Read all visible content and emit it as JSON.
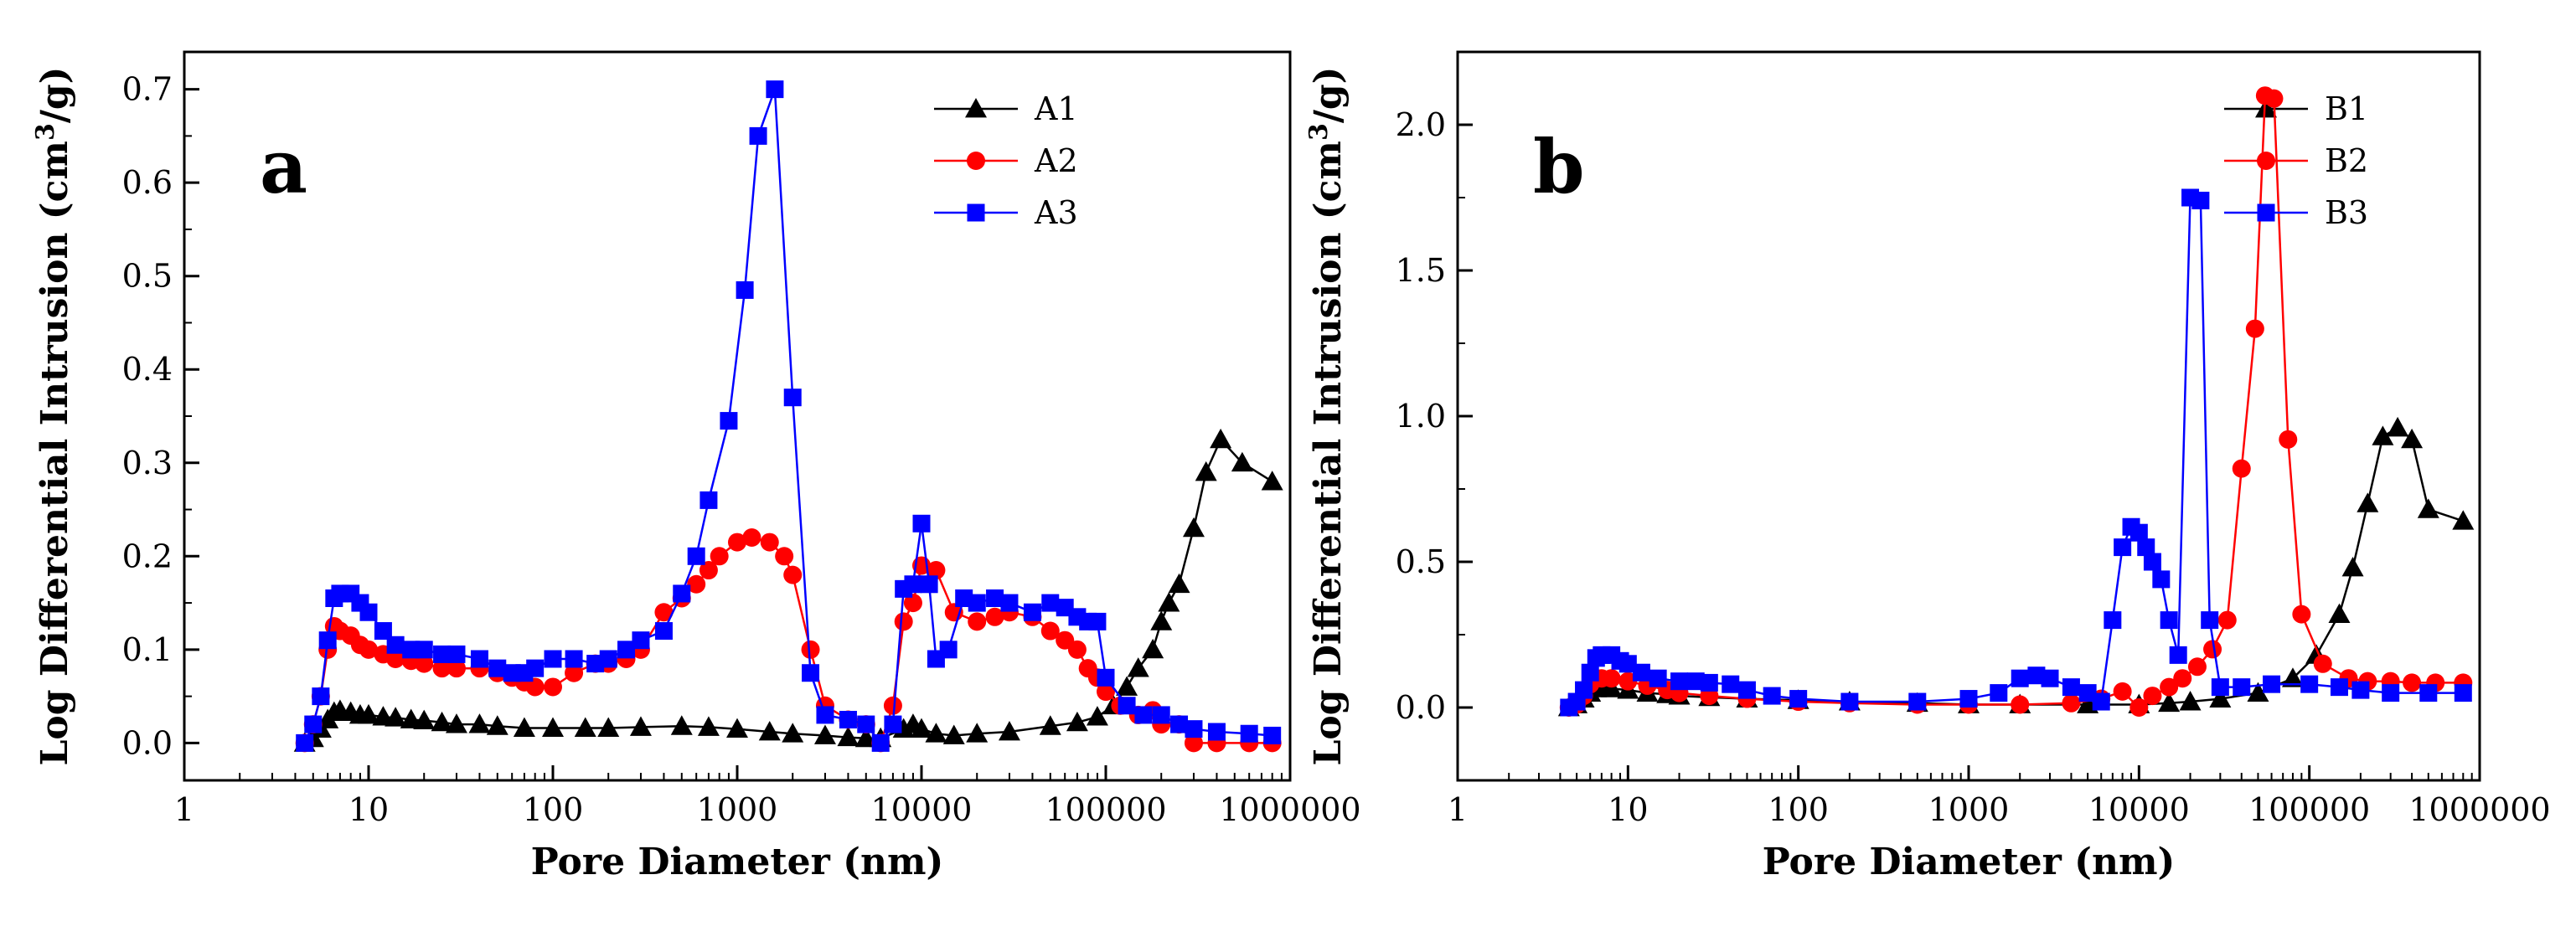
{
  "chart_data": [
    {
      "type": "line",
      "panel_label": "a",
      "xscale": "log",
      "xlim": [
        1,
        1000000
      ],
      "ylim": [
        -0.04,
        0.74
      ],
      "xticks": [
        1,
        10,
        100,
        1000,
        10000,
        100000,
        1000000
      ],
      "xtick_labels": [
        "1",
        "10",
        "100",
        "1000",
        "10000",
        "100000",
        "1000000"
      ],
      "yticks": [
        0.0,
        0.1,
        0.2,
        0.3,
        0.4,
        0.5,
        0.6,
        0.7
      ],
      "ytick_labels": [
        "0.0",
        "0.1",
        "0.2",
        "0.3",
        "0.4",
        "0.5",
        "0.6",
        "0.7"
      ],
      "xlabel": "Pore Diameter (nm)",
      "ylabel": "Log Differential Intrusion (cm",
      "ylabel_sup": "3",
      "ylabel_tail": "/g)",
      "legend_position": "top-right",
      "series": [
        {
          "name": "A1",
          "color": "#000000",
          "marker": "triangle",
          "x": [
            4.5,
            5,
            5.5,
            6,
            6.5,
            7,
            8,
            9,
            10,
            12,
            14,
            17,
            20,
            25,
            30,
            40,
            50,
            70,
            100,
            150,
            200,
            300,
            500,
            700,
            1000,
            1500,
            2000,
            3000,
            4000,
            5000,
            6000,
            8000,
            9000,
            10000,
            12000,
            15000,
            20000,
            30000,
            50000,
            70000,
            90000,
            110000,
            130000,
            150000,
            180000,
            200000,
            220000,
            250000,
            300000,
            350000,
            420000,
            550000,
            800000
          ],
          "y": [
            0.0,
            0.005,
            0.015,
            0.025,
            0.033,
            0.035,
            0.033,
            0.03,
            0.03,
            0.028,
            0.027,
            0.025,
            0.024,
            0.022,
            0.02,
            0.02,
            0.018,
            0.016,
            0.016,
            0.016,
            0.016,
            0.017,
            0.018,
            0.017,
            0.015,
            0.012,
            0.01,
            0.008,
            0.006,
            0.005,
            0.005,
            0.015,
            0.02,
            0.015,
            0.01,
            0.008,
            0.01,
            0.012,
            0.018,
            0.022,
            0.028,
            0.04,
            0.06,
            0.08,
            0.1,
            0.13,
            0.15,
            0.17,
            0.23,
            0.29,
            0.325,
            0.3,
            0.28
          ]
        },
        {
          "name": "A2",
          "color": "#ff0000",
          "marker": "circle",
          "x": [
            4.5,
            5,
            5.5,
            6,
            6.5,
            7,
            8,
            9,
            10,
            12,
            14,
            17,
            20,
            25,
            30,
            40,
            50,
            60,
            70,
            80,
            100,
            130,
            170,
            200,
            250,
            300,
            400,
            500,
            600,
            700,
            800,
            1000,
            1200,
            1500,
            1800,
            2000,
            2500,
            3000,
            4000,
            5000,
            6000,
            7000,
            8000,
            9000,
            10000,
            12000,
            15000,
            20000,
            25000,
            30000,
            40000,
            50000,
            60000,
            70000,
            80000,
            90000,
            100000,
            120000,
            150000,
            180000,
            200000,
            250000,
            300000,
            400000,
            600000,
            800000
          ],
          "y": [
            0.0,
            0.02,
            0.05,
            0.1,
            0.125,
            0.12,
            0.115,
            0.105,
            0.1,
            0.095,
            0.09,
            0.088,
            0.085,
            0.08,
            0.08,
            0.08,
            0.075,
            0.07,
            0.065,
            0.06,
            0.06,
            0.075,
            0.085,
            0.085,
            0.09,
            0.1,
            0.14,
            0.155,
            0.17,
            0.185,
            0.2,
            0.215,
            0.22,
            0.215,
            0.2,
            0.18,
            0.1,
            0.04,
            0.025,
            0.02,
            0.0,
            0.04,
            0.13,
            0.15,
            0.19,
            0.185,
            0.14,
            0.13,
            0.135,
            0.14,
            0.135,
            0.12,
            0.11,
            0.1,
            0.08,
            0.07,
            0.055,
            0.04,
            0.03,
            0.035,
            0.02,
            0.02,
            0.0,
            0.0,
            0.0,
            0.0
          ]
        },
        {
          "name": "A3",
          "color": "#0000ff",
          "marker": "square",
          "x": [
            4.5,
            5,
            5.5,
            6,
            6.5,
            7,
            8,
            9,
            10,
            12,
            14,
            17,
            20,
            25,
            30,
            40,
            50,
            60,
            70,
            80,
            100,
            130,
            170,
            200,
            250,
            300,
            400,
            500,
            600,
            700,
            900,
            1100,
            1300,
            1600,
            2000,
            2500,
            3000,
            4000,
            5000,
            6000,
            7000,
            8000,
            9000,
            10000,
            11000,
            12000,
            14000,
            17000,
            20000,
            25000,
            30000,
            40000,
            50000,
            60000,
            70000,
            80000,
            90000,
            100000,
            130000,
            160000,
            200000,
            250000,
            300000,
            400000,
            600000,
            800000
          ],
          "y": [
            0.0,
            0.02,
            0.05,
            0.11,
            0.155,
            0.16,
            0.16,
            0.15,
            0.14,
            0.12,
            0.105,
            0.1,
            0.1,
            0.095,
            0.095,
            0.09,
            0.08,
            0.075,
            0.075,
            0.08,
            0.09,
            0.09,
            0.085,
            0.09,
            0.1,
            0.11,
            0.12,
            0.16,
            0.2,
            0.26,
            0.345,
            0.485,
            0.65,
            0.7,
            0.37,
            0.075,
            0.03,
            0.025,
            0.02,
            0.0,
            0.02,
            0.165,
            0.17,
            0.235,
            0.17,
            0.09,
            0.1,
            0.155,
            0.15,
            0.155,
            0.15,
            0.14,
            0.15,
            0.145,
            0.135,
            0.13,
            0.13,
            0.07,
            0.04,
            0.03,
            0.03,
            0.02,
            0.015,
            0.012,
            0.01,
            0.008
          ]
        }
      ]
    },
    {
      "type": "line",
      "panel_label": "b",
      "xscale": "log",
      "xlim": [
        1,
        1000000
      ],
      "ylim": [
        -0.25,
        2.25
      ],
      "xticks": [
        1,
        10,
        100,
        1000,
        10000,
        100000,
        1000000
      ],
      "xtick_labels": [
        "1",
        "10",
        "100",
        "1000",
        "10000",
        "100000",
        "1000000"
      ],
      "yticks": [
        0.0,
        0.5,
        1.0,
        1.5,
        2.0
      ],
      "ytick_labels": [
        "0.0",
        "0.5",
        "1.0",
        "1.5",
        "2.0"
      ],
      "xlabel": "Pore Diameter (nm)",
      "ylabel": "Log Differential Intrusion (cm",
      "ylabel_sup": "3",
      "ylabel_tail": "/g)",
      "legend_position": "top-right",
      "series": [
        {
          "name": "B1",
          "color": "#000000",
          "marker": "triangle",
          "x": [
            4.5,
            5,
            5.5,
            6,
            6.5,
            7,
            8,
            10,
            13,
            17,
            20,
            30,
            50,
            100,
            200,
            500,
            1000,
            2000,
            5000,
            10000,
            15000,
            20000,
            30000,
            50000,
            80000,
            110000,
            150000,
            180000,
            220000,
            270000,
            330000,
            400000,
            500000,
            800000
          ],
          "y": [
            0.0,
            0.01,
            0.03,
            0.05,
            0.065,
            0.07,
            0.065,
            0.06,
            0.05,
            0.045,
            0.04,
            0.035,
            0.03,
            0.025,
            0.02,
            0.015,
            0.01,
            0.01,
            0.01,
            0.01,
            0.015,
            0.02,
            0.03,
            0.05,
            0.1,
            0.18,
            0.32,
            0.48,
            0.7,
            0.93,
            0.96,
            0.92,
            0.68,
            0.64
          ]
        },
        {
          "name": "B2",
          "color": "#ff0000",
          "marker": "circle",
          "x": [
            4.5,
            5,
            5.5,
            6,
            6.5,
            7,
            8,
            10,
            13,
            17,
            20,
            30,
            50,
            100,
            200,
            500,
            1000,
            2000,
            4000,
            6000,
            8000,
            10000,
            12000,
            15000,
            18000,
            22000,
            27000,
            33000,
            40000,
            48000,
            55000,
            62000,
            75000,
            90000,
            120000,
            170000,
            220000,
            300000,
            400000,
            550000,
            800000
          ],
          "y": [
            0.0,
            0.01,
            0.04,
            0.08,
            0.1,
            0.1,
            0.1,
            0.09,
            0.075,
            0.06,
            0.05,
            0.04,
            0.03,
            0.02,
            0.015,
            0.01,
            0.01,
            0.01,
            0.015,
            0.03,
            0.055,
            0.0,
            0.04,
            0.07,
            0.1,
            0.14,
            0.2,
            0.3,
            0.82,
            1.3,
            2.1,
            2.09,
            0.92,
            0.32,
            0.15,
            0.1,
            0.09,
            0.09,
            0.085,
            0.085,
            0.085
          ]
        },
        {
          "name": "B3",
          "color": "#0000ff",
          "marker": "square",
          "x": [
            4.5,
            5,
            5.5,
            6,
            6.5,
            7,
            8,
            9,
            10,
            12,
            15,
            20,
            25,
            30,
            40,
            50,
            70,
            100,
            200,
            500,
            1000,
            1500,
            2000,
            2500,
            3000,
            4000,
            5000,
            6000,
            7000,
            8000,
            9000,
            10000,
            11000,
            12000,
            13500,
            15000,
            17000,
            20000,
            23000,
            26000,
            30000,
            40000,
            60000,
            100000,
            150000,
            200000,
            300000,
            500000,
            800000
          ],
          "y": [
            0.0,
            0.02,
            0.06,
            0.12,
            0.17,
            0.18,
            0.18,
            0.16,
            0.15,
            0.12,
            0.1,
            0.09,
            0.09,
            0.085,
            0.08,
            0.06,
            0.04,
            0.03,
            0.02,
            0.02,
            0.03,
            0.05,
            0.1,
            0.11,
            0.1,
            0.07,
            0.05,
            0.02,
            0.3,
            0.55,
            0.62,
            0.6,
            0.55,
            0.5,
            0.44,
            0.3,
            0.18,
            1.75,
            1.74,
            0.3,
            0.07,
            0.07,
            0.08,
            0.08,
            0.07,
            0.06,
            0.05,
            0.05,
            0.05
          ]
        }
      ]
    }
  ]
}
